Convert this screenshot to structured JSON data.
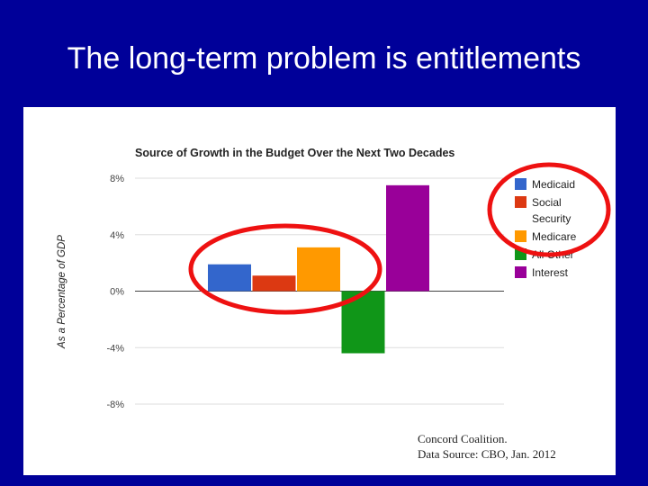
{
  "slide": {
    "title": "The long-term problem is entitlements"
  },
  "chart_data": {
    "type": "bar",
    "title": "Source of Growth in the Budget Over the Next Two Decades",
    "xlabel": "",
    "ylabel": "As a Percentage of GDP",
    "ylim": [
      -8,
      8
    ],
    "yticks": [
      8,
      4,
      0,
      -4,
      -8
    ],
    "ytick_labels": [
      "8%",
      "4%",
      "0%",
      "-4%",
      "-8%"
    ],
    "grid": true,
    "legend_position": "right",
    "series": [
      {
        "name": "Medicaid",
        "value": 1.9,
        "color": "#3366cc"
      },
      {
        "name": "Social Security",
        "value": 1.1,
        "color": "#dc3912"
      },
      {
        "name": "Medicare",
        "value": 3.1,
        "color": "#ff9900"
      },
      {
        "name": "All Other",
        "value": -4.4,
        "color": "#109618"
      },
      {
        "name": "Interest",
        "value": 7.5,
        "color": "#990099"
      }
    ]
  },
  "annotations": {
    "circle_color": "#ee1111",
    "source_line1": "Concord Coalition.",
    "source_line2": "Data Source: CBO, Jan. 2012"
  }
}
